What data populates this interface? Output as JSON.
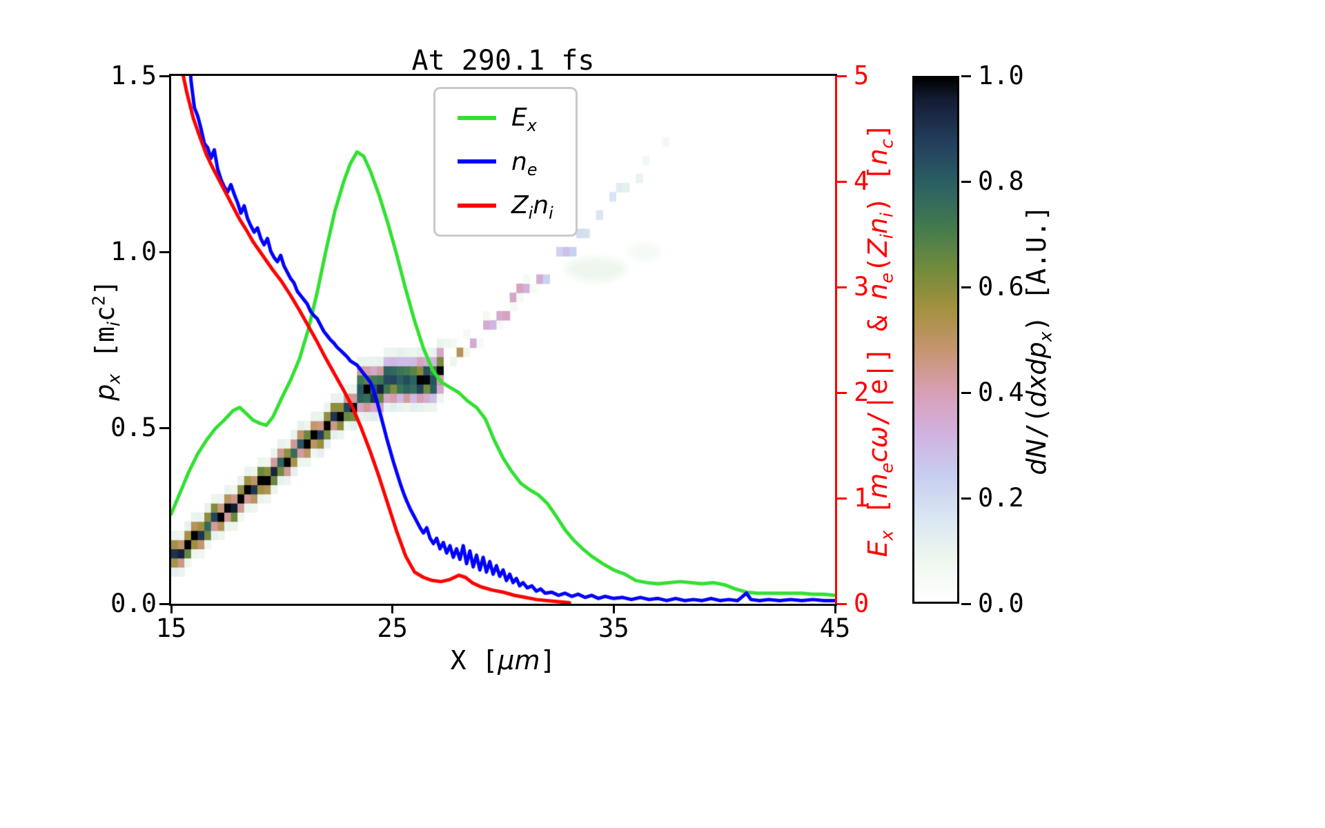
{
  "chart_data": {
    "type": "line+heatmap",
    "title": "At 290.1 fs",
    "xlabel": "X [*μm*]",
    "ylabel_left": "*p*_{x} [m_{i}c^{2}]",
    "ylabel_right": "*E*_{x} [*m*_{e}*cω*/|e|] & *n*_{e}(*Z*_{i}*n*_{i}) [*n*_{c}]",
    "xlim": [
      15,
      45
    ],
    "ylim_left": [
      0,
      1.5
    ],
    "ylim_right": [
      0,
      5
    ],
    "x_ticks": [
      15,
      25,
      35,
      45
    ],
    "y_ticks_left": [
      "0.0",
      "0.5",
      "1.0",
      "1.5"
    ],
    "y_ticks_right": [
      "0",
      "1",
      "2",
      "3",
      "4",
      "5"
    ],
    "axis_color_right": "#ff0000",
    "grid": false,
    "legend": {
      "position": "upper center",
      "entries": [
        {
          "label": "*E*_{x}",
          "color": "#32e032"
        },
        {
          "label": "*n*_{e}",
          "color": "#0000ff"
        },
        {
          "label": "*Z*_{i}*n*_{i}",
          "color": "#ff0000"
        }
      ]
    },
    "series": [
      {
        "name": "E_x",
        "axis": "right",
        "color": "#32e032",
        "width": 5,
        "points": [
          [
            15,
            0.85
          ],
          [
            15.4,
            1.05
          ],
          [
            15.8,
            1.25
          ],
          [
            16.2,
            1.42
          ],
          [
            16.6,
            1.55
          ],
          [
            17.0,
            1.66
          ],
          [
            17.4,
            1.74
          ],
          [
            17.8,
            1.83
          ],
          [
            18.1,
            1.86
          ],
          [
            18.4,
            1.8
          ],
          [
            18.7,
            1.74
          ],
          [
            19.0,
            1.71
          ],
          [
            19.3,
            1.69
          ],
          [
            19.6,
            1.77
          ],
          [
            20.0,
            1.95
          ],
          [
            20.4,
            2.12
          ],
          [
            20.8,
            2.32
          ],
          [
            21.2,
            2.6
          ],
          [
            21.6,
            2.95
          ],
          [
            22.0,
            3.35
          ],
          [
            22.4,
            3.72
          ],
          [
            22.8,
            4.0
          ],
          [
            23.1,
            4.17
          ],
          [
            23.4,
            4.28
          ],
          [
            23.7,
            4.24
          ],
          [
            24.0,
            4.1
          ],
          [
            24.4,
            3.87
          ],
          [
            24.8,
            3.6
          ],
          [
            25.2,
            3.3
          ],
          [
            25.6,
            2.98
          ],
          [
            26.0,
            2.68
          ],
          [
            26.4,
            2.42
          ],
          [
            26.8,
            2.22
          ],
          [
            27.2,
            2.1
          ],
          [
            27.6,
            2.05
          ],
          [
            28.0,
            2.0
          ],
          [
            28.4,
            1.92
          ],
          [
            28.8,
            1.86
          ],
          [
            29.2,
            1.75
          ],
          [
            29.6,
            1.55
          ],
          [
            30.0,
            1.38
          ],
          [
            30.4,
            1.25
          ],
          [
            30.8,
            1.14
          ],
          [
            31.2,
            1.08
          ],
          [
            31.6,
            1.03
          ],
          [
            32.0,
            0.95
          ],
          [
            32.4,
            0.83
          ],
          [
            32.8,
            0.7
          ],
          [
            33.2,
            0.6
          ],
          [
            33.6,
            0.52
          ],
          [
            34.0,
            0.45
          ],
          [
            34.5,
            0.38
          ],
          [
            35.0,
            0.32
          ],
          [
            35.5,
            0.28
          ],
          [
            36.0,
            0.22
          ],
          [
            36.5,
            0.2
          ],
          [
            37.0,
            0.19
          ],
          [
            37.5,
            0.2
          ],
          [
            38.0,
            0.21
          ],
          [
            38.5,
            0.2
          ],
          [
            39.0,
            0.19
          ],
          [
            39.5,
            0.2
          ],
          [
            40.0,
            0.18
          ],
          [
            40.5,
            0.14
          ],
          [
            41.0,
            0.11
          ],
          [
            41.5,
            0.1
          ],
          [
            42.0,
            0.1
          ],
          [
            42.5,
            0.1
          ],
          [
            43.0,
            0.1
          ],
          [
            43.5,
            0.1
          ],
          [
            44.0,
            0.09
          ],
          [
            44.5,
            0.09
          ],
          [
            45,
            0.08
          ]
        ]
      },
      {
        "name": "n_e",
        "axis": "right",
        "color": "#0000ff",
        "width": 5,
        "points": [
          [
            15.78,
            5.35
          ],
          [
            15.9,
            4.95
          ],
          [
            16.05,
            4.7
          ],
          [
            16.2,
            4.62
          ],
          [
            16.35,
            4.5
          ],
          [
            16.5,
            4.36
          ],
          [
            16.65,
            4.32
          ],
          [
            16.8,
            4.22
          ],
          [
            16.95,
            4.3
          ],
          [
            17.1,
            4.12
          ],
          [
            17.25,
            4.02
          ],
          [
            17.4,
            3.95
          ],
          [
            17.55,
            3.9
          ],
          [
            17.7,
            3.97
          ],
          [
            17.85,
            3.88
          ],
          [
            18.0,
            3.8
          ],
          [
            18.15,
            3.7
          ],
          [
            18.3,
            3.77
          ],
          [
            18.45,
            3.65
          ],
          [
            18.6,
            3.58
          ],
          [
            18.75,
            3.52
          ],
          [
            18.9,
            3.56
          ],
          [
            19.05,
            3.46
          ],
          [
            19.2,
            3.4
          ],
          [
            19.35,
            3.46
          ],
          [
            19.5,
            3.34
          ],
          [
            19.65,
            3.28
          ],
          [
            19.8,
            3.24
          ],
          [
            19.95,
            3.3
          ],
          [
            20.1,
            3.2
          ],
          [
            20.25,
            3.14
          ],
          [
            20.4,
            3.08
          ],
          [
            20.55,
            3.04
          ],
          [
            20.7,
            2.96
          ],
          [
            20.85,
            2.92
          ],
          [
            21.0,
            2.88
          ],
          [
            21.15,
            2.84
          ],
          [
            21.3,
            2.77
          ],
          [
            21.45,
            2.73
          ],
          [
            21.6,
            2.7
          ],
          [
            21.75,
            2.64
          ],
          [
            21.9,
            2.58
          ],
          [
            22.05,
            2.54
          ],
          [
            22.2,
            2.5
          ],
          [
            22.35,
            2.47
          ],
          [
            22.5,
            2.43
          ],
          [
            22.65,
            2.4
          ],
          [
            22.8,
            2.37
          ],
          [
            22.95,
            2.34
          ],
          [
            23.1,
            2.3
          ],
          [
            23.25,
            2.28
          ],
          [
            23.4,
            2.26
          ],
          [
            23.55,
            2.22
          ],
          [
            23.7,
            2.18
          ],
          [
            23.85,
            2.14
          ],
          [
            24.0,
            2.1
          ],
          [
            24.15,
            2.02
          ],
          [
            24.3,
            1.92
          ],
          [
            24.45,
            1.8
          ],
          [
            24.6,
            1.68
          ],
          [
            24.75,
            1.56
          ],
          [
            24.9,
            1.45
          ],
          [
            25.05,
            1.34
          ],
          [
            25.2,
            1.24
          ],
          [
            25.35,
            1.14
          ],
          [
            25.5,
            1.05
          ],
          [
            25.65,
            0.97
          ],
          [
            25.8,
            0.9
          ],
          [
            25.95,
            0.84
          ],
          [
            26.1,
            0.78
          ],
          [
            26.25,
            0.72
          ],
          [
            26.4,
            0.67
          ],
          [
            26.55,
            0.72
          ],
          [
            26.7,
            0.62
          ],
          [
            26.85,
            0.57
          ],
          [
            27.0,
            0.62
          ],
          [
            27.15,
            0.52
          ],
          [
            27.3,
            0.58
          ],
          [
            27.45,
            0.48
          ],
          [
            27.6,
            0.55
          ],
          [
            27.75,
            0.44
          ],
          [
            27.9,
            0.52
          ],
          [
            28.05,
            0.42
          ],
          [
            28.2,
            0.55
          ],
          [
            28.35,
            0.38
          ],
          [
            28.5,
            0.5
          ],
          [
            28.65,
            0.35
          ],
          [
            28.8,
            0.46
          ],
          [
            28.95,
            0.32
          ],
          [
            29.1,
            0.44
          ],
          [
            29.25,
            0.3
          ],
          [
            29.4,
            0.4
          ],
          [
            29.55,
            0.28
          ],
          [
            29.7,
            0.36
          ],
          [
            29.85,
            0.26
          ],
          [
            30.0,
            0.32
          ],
          [
            30.15,
            0.22
          ],
          [
            30.3,
            0.28
          ],
          [
            30.45,
            0.2
          ],
          [
            30.6,
            0.24
          ],
          [
            30.75,
            0.17
          ],
          [
            30.9,
            0.2
          ],
          [
            31.1,
            0.15
          ],
          [
            31.3,
            0.17
          ],
          [
            31.5,
            0.12
          ],
          [
            31.7,
            0.14
          ],
          [
            31.9,
            0.1
          ],
          [
            32.2,
            0.11
          ],
          [
            32.5,
            0.08
          ],
          [
            32.8,
            0.1
          ],
          [
            33.1,
            0.07
          ],
          [
            33.4,
            0.09
          ],
          [
            33.7,
            0.06
          ],
          [
            34.0,
            0.08
          ],
          [
            34.3,
            0.05
          ],
          [
            34.6,
            0.07
          ],
          [
            35.0,
            0.05
          ],
          [
            35.4,
            0.06
          ],
          [
            35.8,
            0.04
          ],
          [
            36.2,
            0.06
          ],
          [
            36.6,
            0.04
          ],
          [
            37.0,
            0.05
          ],
          [
            37.4,
            0.03
          ],
          [
            37.8,
            0.05
          ],
          [
            38.2,
            0.03
          ],
          [
            38.6,
            0.04
          ],
          [
            39.0,
            0.03
          ],
          [
            39.4,
            0.05
          ],
          [
            39.8,
            0.03
          ],
          [
            40.2,
            0.04
          ],
          [
            40.6,
            0.03
          ],
          [
            41.0,
            0.1
          ],
          [
            41.2,
            0.04
          ],
          [
            41.6,
            0.03
          ],
          [
            42.0,
            0.04
          ],
          [
            42.5,
            0.03
          ],
          [
            43.0,
            0.04
          ],
          [
            43.5,
            0.03
          ],
          [
            44.0,
            0.04
          ],
          [
            44.5,
            0.03
          ],
          [
            45,
            0.03
          ]
        ]
      },
      {
        "name": "Z_i n_i",
        "axis": "right",
        "color": "#ff0000",
        "width": 5,
        "points": [
          [
            15.3,
            5.4
          ],
          [
            15.5,
            5.05
          ],
          [
            15.7,
            4.85
          ],
          [
            16.0,
            4.6
          ],
          [
            16.3,
            4.42
          ],
          [
            16.6,
            4.25
          ],
          [
            16.9,
            4.12
          ],
          [
            17.2,
            4.0
          ],
          [
            17.5,
            3.88
          ],
          [
            17.8,
            3.76
          ],
          [
            18.1,
            3.64
          ],
          [
            18.4,
            3.54
          ],
          [
            18.7,
            3.43
          ],
          [
            19.0,
            3.34
          ],
          [
            19.3,
            3.25
          ],
          [
            19.6,
            3.16
          ],
          [
            20.0,
            3.05
          ],
          [
            20.4,
            2.92
          ],
          [
            20.8,
            2.78
          ],
          [
            21.2,
            2.63
          ],
          [
            21.6,
            2.48
          ],
          [
            22.0,
            2.32
          ],
          [
            22.4,
            2.17
          ],
          [
            22.8,
            2.02
          ],
          [
            23.2,
            1.86
          ],
          [
            23.6,
            1.66
          ],
          [
            24.0,
            1.44
          ],
          [
            24.4,
            1.2
          ],
          [
            24.8,
            0.94
          ],
          [
            25.2,
            0.68
          ],
          [
            25.6,
            0.45
          ],
          [
            26.0,
            0.3
          ],
          [
            26.4,
            0.25
          ],
          [
            26.8,
            0.22
          ],
          [
            27.2,
            0.21
          ],
          [
            27.6,
            0.23
          ],
          [
            28.0,
            0.27
          ],
          [
            28.3,
            0.25
          ],
          [
            28.6,
            0.2
          ],
          [
            29.0,
            0.16
          ],
          [
            29.5,
            0.13
          ],
          [
            30.0,
            0.11
          ],
          [
            30.5,
            0.08
          ],
          [
            31.0,
            0.06
          ],
          [
            31.5,
            0.04
          ],
          [
            32.0,
            0.03
          ],
          [
            32.5,
            0.02
          ],
          [
            33.0,
            0.01
          ]
        ]
      }
    ],
    "heatmap": {
      "units": "p_x vs X, intensity dN/(dxdp_x) A.U.",
      "cell_dx": 0.3,
      "cell_dpx": 0.026,
      "bands": [
        {
          "x0": 14.9,
          "px0": 0.125,
          "x1": 23.3,
          "px1": 0.575,
          "thickness": 0.055,
          "i0": 0.95,
          "i1": 0.95,
          "speckle": false
        },
        {
          "x0": 23.3,
          "px0": 0.6,
          "x1": 27.1,
          "px1": 0.64,
          "thickness": 0.085,
          "i0": 0.97,
          "i1": 0.9,
          "speckle": false
        },
        {
          "x0": 27.1,
          "px0": 0.66,
          "x1": 31.0,
          "px1": 0.88,
          "thickness": 0.03,
          "i0": 0.5,
          "i1": 0.3,
          "speckle": true
        },
        {
          "x0": 31.0,
          "px0": 0.88,
          "x1": 35.4,
          "px1": 1.18,
          "thickness": 0.03,
          "i0": 0.3,
          "i1": 0.15,
          "speckle": true
        },
        {
          "x0": 35.4,
          "px0": 1.18,
          "x1": 37.6,
          "px1": 1.32,
          "thickness": 0.03,
          "i0": 0.1,
          "i1": 0.04,
          "speckle": true
        }
      ],
      "smudges": [
        {
          "x": 34.2,
          "px": 0.95,
          "w": 2.8,
          "h": 0.07,
          "v": 0.08
        },
        {
          "x": 36.4,
          "px": 1.0,
          "w": 1.5,
          "h": 0.05,
          "v": 0.05
        }
      ],
      "colormap": [
        {
          "v": 0.0,
          "c": "#ffffff"
        },
        {
          "v": 0.08,
          "c": "#eef7ee"
        },
        {
          "v": 0.16,
          "c": "#d9e6f2"
        },
        {
          "v": 0.24,
          "c": "#c8cdf0"
        },
        {
          "v": 0.32,
          "c": "#d0b2e0"
        },
        {
          "v": 0.4,
          "c": "#d89fb6"
        },
        {
          "v": 0.48,
          "c": "#c69570"
        },
        {
          "v": 0.56,
          "c": "#a3913f"
        },
        {
          "v": 0.64,
          "c": "#6f8a3c"
        },
        {
          "v": 0.72,
          "c": "#417950"
        },
        {
          "v": 0.8,
          "c": "#2a5f63"
        },
        {
          "v": 0.88,
          "c": "#233d5c"
        },
        {
          "v": 0.96,
          "c": "#131c33"
        },
        {
          "v": 1.0,
          "c": "#000000"
        }
      ]
    },
    "colorbar": {
      "label": "*dN*/(*dxdp*_{x}) [A.U.]",
      "ticks": [
        "0.0",
        "0.2",
        "0.4",
        "0.6",
        "0.8",
        "1.0"
      ],
      "lim": [
        0,
        1
      ]
    }
  }
}
